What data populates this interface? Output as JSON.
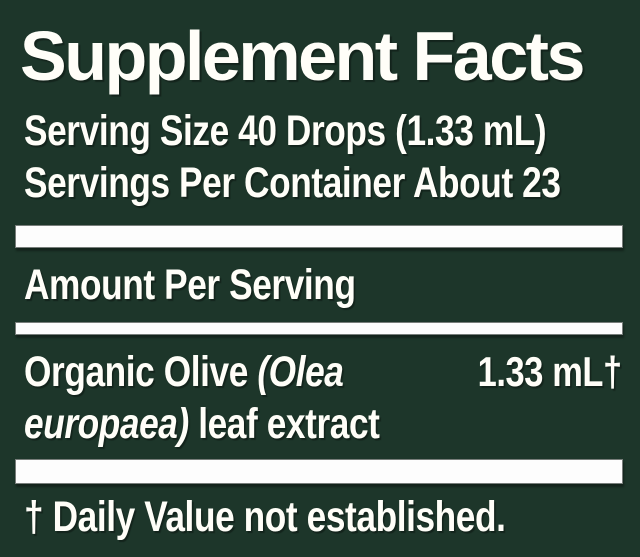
{
  "label": {
    "title": "Supplement Facts",
    "serving_size": "Serving Size 40 Drops (1.33 mL)",
    "servings_per_container": "Servings Per Container About 23",
    "amount_header": "Amount Per Serving",
    "ingredient": {
      "line1": {
        "regular": "Organic Olive ",
        "italic": "(Olea"
      },
      "line2": {
        "italic": "europaea)",
        "regular": " leaf extract"
      },
      "amount": "1.33 mL†"
    },
    "footnote": "† Daily Value not established.",
    "colors": {
      "background": "#1d362a",
      "text": "#fffef8",
      "bar": "#fdfdfd"
    }
  }
}
